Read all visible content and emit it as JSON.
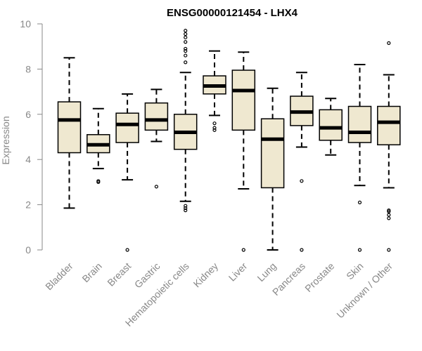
{
  "chart_data": {
    "type": "boxplot",
    "title": "ENSG00000121454 - LHX4",
    "xlabel": "",
    "ylabel": "Expression",
    "ylim": [
      0,
      10
    ],
    "yticks": [
      0,
      2,
      4,
      6,
      8,
      10
    ],
    "grid": false,
    "colors": {
      "box_fill": "#efe8d0",
      "stroke": "#000000",
      "axis": "#888888"
    },
    "categories": [
      "Bladder",
      "Brain",
      "Breast",
      "Gastric",
      "Hematopoietic cells",
      "Kidney",
      "Liver",
      "Lung",
      "Pancreas",
      "Prostate",
      "Skin",
      "Unknown / Other"
    ],
    "boxes": [
      {
        "category": "Bladder",
        "whisker_low": 1.85,
        "q1": 4.3,
        "median": 5.75,
        "q3": 6.55,
        "whisker_high": 8.5,
        "outliers": []
      },
      {
        "category": "Brain",
        "whisker_low": 3.6,
        "q1": 4.3,
        "median": 4.65,
        "q3": 5.1,
        "whisker_high": 6.25,
        "outliers": [
          3.05,
          3.0
        ]
      },
      {
        "category": "Breast",
        "whisker_low": 3.1,
        "q1": 4.75,
        "median": 5.55,
        "q3": 6.05,
        "whisker_high": 6.9,
        "outliers": [
          0.0
        ]
      },
      {
        "category": "Gastric",
        "whisker_low": 4.8,
        "q1": 5.3,
        "median": 5.75,
        "q3": 6.5,
        "whisker_high": 7.1,
        "outliers": [
          2.8
        ]
      },
      {
        "category": "Hematopoietic cells",
        "whisker_low": 2.15,
        "q1": 4.45,
        "median": 5.2,
        "q3": 6.0,
        "whisker_high": 7.85,
        "outliers": [
          1.75,
          1.85,
          1.95,
          8.3,
          8.6,
          8.8,
          8.9,
          9.2,
          9.4,
          9.55,
          9.7
        ]
      },
      {
        "category": "Kidney",
        "whisker_low": 5.95,
        "q1": 6.9,
        "median": 7.25,
        "q3": 7.7,
        "whisker_high": 8.8,
        "outliers": [
          5.3,
          5.4,
          5.6
        ]
      },
      {
        "category": "Liver",
        "whisker_low": 2.7,
        "q1": 5.3,
        "median": 7.05,
        "q3": 7.95,
        "whisker_high": 8.75,
        "outliers": [
          0.0
        ]
      },
      {
        "category": "Lung",
        "whisker_low": 0.0,
        "q1": 2.75,
        "median": 4.9,
        "q3": 5.8,
        "whisker_high": 7.15,
        "outliers": []
      },
      {
        "category": "Pancreas",
        "whisker_low": 4.55,
        "q1": 5.5,
        "median": 6.1,
        "q3": 6.8,
        "whisker_high": 7.85,
        "outliers": [
          3.05,
          0.0
        ]
      },
      {
        "category": "Prostate",
        "whisker_low": 4.2,
        "q1": 4.85,
        "median": 5.4,
        "q3": 6.2,
        "whisker_high": 6.7,
        "outliers": []
      },
      {
        "category": "Skin",
        "whisker_low": 2.85,
        "q1": 4.75,
        "median": 5.2,
        "q3": 6.35,
        "whisker_high": 8.2,
        "outliers": [
          2.1,
          0.0
        ]
      },
      {
        "category": "Unknown / Other",
        "whisker_low": 2.75,
        "q1": 4.65,
        "median": 5.65,
        "q3": 6.35,
        "whisker_high": 7.75,
        "outliers": [
          1.4,
          1.55,
          1.7,
          1.75,
          0.0,
          9.15
        ]
      }
    ]
  }
}
